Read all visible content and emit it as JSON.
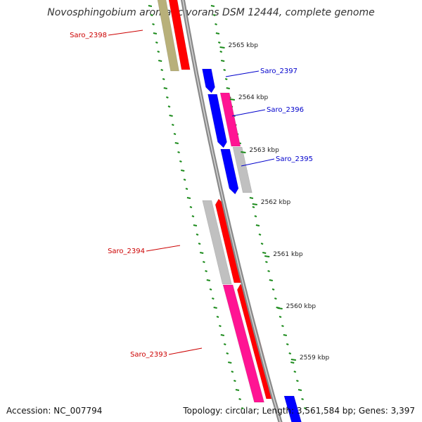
{
  "title": "Novosphingobium aromaticivorans DSM 12444, complete genome",
  "footer": {
    "accession": "Accession: NC_007794",
    "summary": "Topology: circular; Length: 3,561,584 bp; Genes: 3,397"
  },
  "colors": {
    "background": "#ffffff",
    "backbone": "#8a8a8a",
    "tick": "#1a8a1a",
    "label_forward": "#cc0000",
    "label_reverse": "#0000cc",
    "red": "#ff0000",
    "blue": "#0000ff",
    "pink": "#ff1493",
    "gray": "#c0c0c0",
    "olive": "#b8b07a"
  },
  "scale_labels": [
    "2565 kbp",
    "2564 kbp",
    "2563 kbp",
    "2562 kbp",
    "2561 kbp",
    "2560 kbp",
    "2559 kbp"
  ],
  "gene_labels": [
    {
      "text": "Saro_2398",
      "strand": "forward"
    },
    {
      "text": "Saro_2397",
      "strand": "reverse"
    },
    {
      "text": "Saro_2396",
      "strand": "reverse"
    },
    {
      "text": "Saro_2395",
      "strand": "reverse"
    },
    {
      "text": "Saro_2394",
      "strand": "forward"
    },
    {
      "text": "Saro_2393",
      "strand": "forward"
    }
  ],
  "features": [
    {
      "color": "olive"
    },
    {
      "color": "red"
    },
    {
      "color": "blue"
    },
    {
      "color": "blue"
    },
    {
      "color": "blue"
    },
    {
      "color": "pink"
    },
    {
      "color": "gray"
    },
    {
      "color": "gray"
    },
    {
      "color": "red"
    },
    {
      "color": "pink"
    },
    {
      "color": "red"
    },
    {
      "color": "blue"
    }
  ]
}
